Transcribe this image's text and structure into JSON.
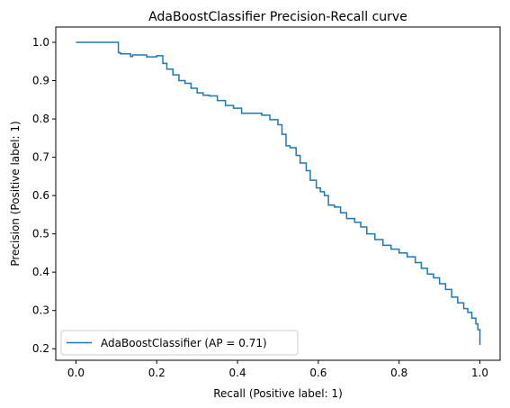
{
  "chart_data": {
    "type": "line",
    "title": "AdaBoostClassifier Precision-Recall curve",
    "xlabel": "Recall (Positive label: 1)",
    "ylabel": "Precision (Positive label: 1)",
    "xlim": [
      -0.05,
      1.05
    ],
    "ylim": [
      0.17,
      1.04
    ],
    "xticks": [
      "0.0",
      "0.2",
      "0.4",
      "0.6",
      "0.8",
      "1.0"
    ],
    "yticks": [
      "0.2",
      "0.3",
      "0.4",
      "0.5",
      "0.6",
      "0.7",
      "0.8",
      "0.9",
      "1.0"
    ],
    "grid": false,
    "legend_position": "lower-left",
    "series": [
      {
        "name": "AdaBoostClassifier (AP = 0.71)",
        "color": "#1f77b4",
        "step": "post",
        "x": [
          0.0,
          0.105,
          0.105,
          0.11,
          0.11,
          0.135,
          0.135,
          0.14,
          0.14,
          0.175,
          0.175,
          0.2,
          0.2,
          0.215,
          0.215,
          0.225,
          0.225,
          0.24,
          0.24,
          0.255,
          0.255,
          0.27,
          0.27,
          0.285,
          0.285,
          0.3,
          0.3,
          0.315,
          0.315,
          0.33,
          0.33,
          0.35,
          0.35,
          0.37,
          0.37,
          0.39,
          0.39,
          0.41,
          0.41,
          0.43,
          0.43,
          0.46,
          0.46,
          0.48,
          0.48,
          0.5,
          0.5,
          0.51,
          0.51,
          0.52,
          0.52,
          0.53,
          0.53,
          0.545,
          0.545,
          0.555,
          0.555,
          0.57,
          0.57,
          0.58,
          0.58,
          0.595,
          0.595,
          0.605,
          0.605,
          0.615,
          0.615,
          0.625,
          0.625,
          0.64,
          0.64,
          0.655,
          0.655,
          0.67,
          0.67,
          0.69,
          0.69,
          0.705,
          0.705,
          0.72,
          0.72,
          0.74,
          0.74,
          0.76,
          0.76,
          0.78,
          0.78,
          0.8,
          0.8,
          0.82,
          0.82,
          0.84,
          0.84,
          0.855,
          0.855,
          0.87,
          0.87,
          0.885,
          0.885,
          0.9,
          0.9,
          0.915,
          0.915,
          0.93,
          0.93,
          0.945,
          0.945,
          0.96,
          0.96,
          0.97,
          0.97,
          0.98,
          0.98,
          0.99,
          0.99,
          0.995,
          0.995,
          1.0,
          1.0
        ],
        "y": [
          1.0,
          1.0,
          0.973,
          0.973,
          0.97,
          0.97,
          0.963,
          0.963,
          0.967,
          0.967,
          0.962,
          0.962,
          0.965,
          0.965,
          0.945,
          0.945,
          0.93,
          0.93,
          0.915,
          0.915,
          0.9,
          0.9,
          0.893,
          0.893,
          0.88,
          0.88,
          0.868,
          0.868,
          0.862,
          0.862,
          0.86,
          0.86,
          0.848,
          0.848,
          0.835,
          0.835,
          0.828,
          0.828,
          0.815,
          0.815,
          0.815,
          0.815,
          0.81,
          0.81,
          0.798,
          0.798,
          0.785,
          0.785,
          0.76,
          0.76,
          0.73,
          0.73,
          0.725,
          0.725,
          0.705,
          0.705,
          0.685,
          0.685,
          0.665,
          0.665,
          0.64,
          0.64,
          0.62,
          0.62,
          0.61,
          0.61,
          0.6,
          0.6,
          0.575,
          0.575,
          0.57,
          0.57,
          0.555,
          0.555,
          0.54,
          0.54,
          0.53,
          0.53,
          0.518,
          0.518,
          0.5,
          0.5,
          0.485,
          0.485,
          0.47,
          0.47,
          0.46,
          0.46,
          0.45,
          0.45,
          0.44,
          0.44,
          0.425,
          0.425,
          0.41,
          0.41,
          0.395,
          0.395,
          0.385,
          0.385,
          0.37,
          0.37,
          0.355,
          0.355,
          0.335,
          0.335,
          0.32,
          0.32,
          0.305,
          0.305,
          0.295,
          0.295,
          0.28,
          0.28,
          0.265,
          0.265,
          0.25,
          0.25,
          0.21
        ]
      }
    ]
  }
}
